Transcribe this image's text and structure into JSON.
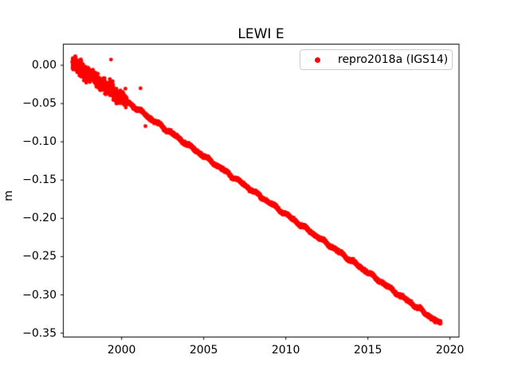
{
  "figure": {
    "background_color": "#ffffff",
    "axes_color": "#000000",
    "text_color": "#000000"
  },
  "chart_data": {
    "type": "scatter",
    "title": "LEWI E",
    "xlabel": "",
    "ylabel": "m",
    "grid": false,
    "legend": {
      "position": "upper right",
      "entries": [
        {
          "label": "repro2018a (IGS14)",
          "color": "#ff0000",
          "marker": "dot"
        }
      ]
    },
    "x_range_years": [
      1996.45,
      2020.55
    ],
    "y_range_m": [
      -0.3551,
      0.0276
    ],
    "xticks": [
      2000,
      2005,
      2010,
      2015,
      2020
    ],
    "xtick_labels": [
      "2000",
      "2005",
      "2010",
      "2015",
      "2020"
    ],
    "yticks": [
      0.0,
      -0.05,
      -0.1,
      -0.15,
      -0.2,
      -0.25,
      -0.3,
      -0.35
    ],
    "ytick_labels": [
      "0.00",
      "−0.05",
      "−0.10",
      "−0.15",
      "−0.20",
      "−0.25",
      "−0.30",
      "−0.35"
    ],
    "series": [
      {
        "name": "repro2018a (IGS14)",
        "color": "#ff0000",
        "marker": "dot",
        "marker_diameter_px": 5,
        "points_per_year": 300,
        "start": {
          "year": 1997.0,
          "value_m": 0.003
        },
        "end": {
          "year": 2019.42,
          "value_m": -0.338
        },
        "trend_slope_m_per_year": -0.0152,
        "scatter_std_m": 0.0009,
        "early_period": {
          "end_year": 2000.3,
          "scatter_std_m": 0.004
        },
        "outliers": [
          {
            "year": 1999.35,
            "value_m": 0.0075
          },
          {
            "year": 1999.18,
            "value_m": -0.036
          },
          {
            "year": 2001.15,
            "value_m": -0.03
          },
          {
            "year": 2001.45,
            "value_m": -0.0795
          }
        ]
      }
    ]
  }
}
